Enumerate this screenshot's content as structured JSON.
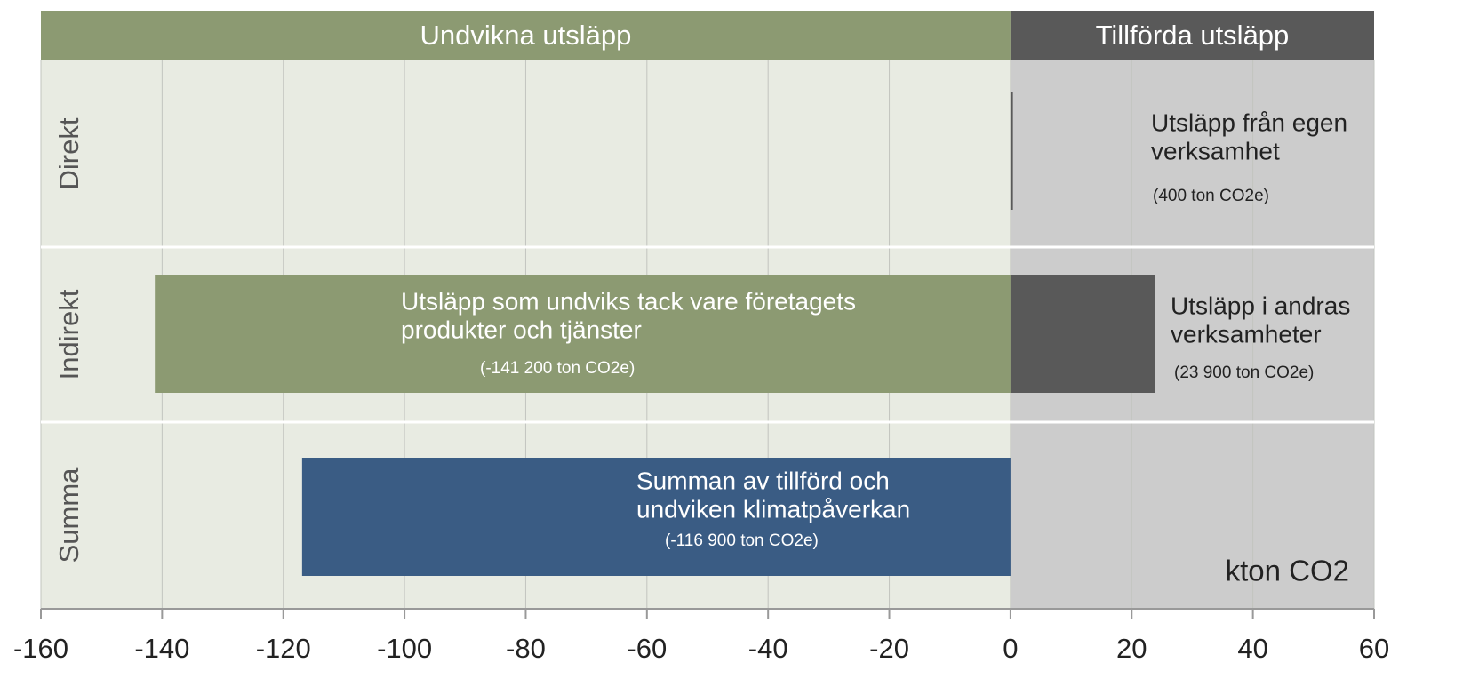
{
  "chart_data": {
    "type": "bar",
    "orientation": "horizontal",
    "categories": [
      "Direkt",
      "Indirekt",
      "Summa"
    ],
    "regions": [
      {
        "label": "Undvikna utsläpp",
        "xrange": [
          -160,
          0
        ],
        "color": "#8c9a72",
        "bg": "#e8ebe2"
      },
      {
        "label": "Tillförda utsläpp",
        "xrange": [
          0,
          60
        ],
        "color": "#595959",
        "bg": "#cccccc"
      }
    ],
    "series": [
      {
        "color": "#8c9a72",
        "text_color": "#ffffff",
        "values": [
          null,
          -141.2,
          null
        ],
        "value_labels": [
          null,
          "(-141 200 ton CO2e)",
          null
        ],
        "texts": [
          null,
          [
            "Utsläpp som undviks tack vare företagets",
            "produkter och tjänster"
          ],
          null
        ]
      },
      {
        "color": "#595959",
        "text_color": "#222222",
        "values": [
          0.4,
          23.9,
          null
        ],
        "value_labels": [
          "(400 ton CO2e)",
          "(23 900 ton CO2e)",
          null
        ],
        "texts": [
          [
            "Utsläpp från egen",
            "verksamhet"
          ],
          [
            "Utsläpp i andras",
            "verksamheter"
          ],
          null
        ]
      },
      {
        "color": "#3a5c84",
        "text_color": "#ffffff",
        "values": [
          null,
          null,
          -116.9
        ],
        "value_labels": [
          null,
          null,
          "(-116 900 ton CO2e)"
        ],
        "texts": [
          null,
          null,
          [
            "Summan av tillförd och",
            "undviken klimatpåverkan"
          ]
        ]
      }
    ],
    "unit": "kton CO2",
    "xlim": [
      -160,
      60
    ],
    "xticks": [
      -160,
      -140,
      -120,
      -100,
      -80,
      -60,
      -40,
      -20,
      0,
      20,
      40,
      60
    ],
    "grid": true
  }
}
